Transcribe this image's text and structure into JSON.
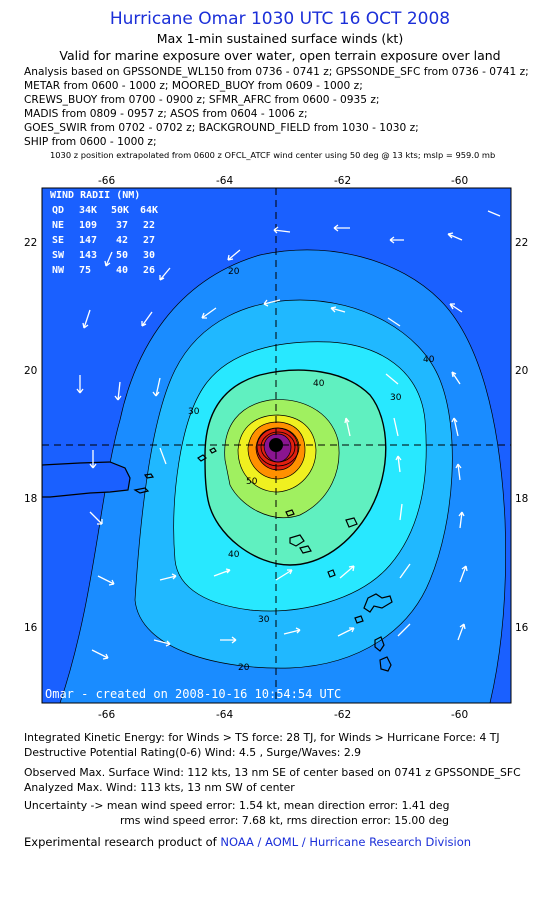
{
  "header": {
    "title": "Hurricane Omar 1030 UTC 16 OCT 2008",
    "subtitle": "Max 1-min sustained surface winds (kt)",
    "validity": "Valid for marine exposure over water, open terrain exposure over land"
  },
  "analysis_sources": [
    "Analysis based on  GPSSONDE_WL150 from 0736 - 0741 z;  GPSSONDE_SFC from 0736 - 0741 z;",
    "METAR from 0600 - 1000 z;  MOORED_BUOY from 0609 - 1000 z;",
    "CREWS_BUOY from 0700 - 0900 z;  SFMR_AFRC from 0600 - 0935 z;",
    "MADIS from 0809 - 0957 z;  ASOS from 0604 - 1006 z;",
    "GOES_SWIR from 0702 - 0702 z;  BACKGROUND_FIELD from 1030 - 1030 z;",
    "SHIP from 0600 - 1000 z;"
  ],
  "position_note": "1030 z position extrapolated from 0600 z OFCL_ATCF wind center using 50 deg @ 13 kts; mslp = 959.0 mb",
  "map": {
    "lon_ticks": [
      "-66",
      "-64",
      "-62",
      "-60"
    ],
    "lat_ticks": [
      "22",
      "20",
      "18",
      "16"
    ],
    "contour_labels": [
      "20",
      "30",
      "40",
      "50",
      "30",
      "40",
      "30",
      "20",
      "40"
    ],
    "credit": "Omar - created on 2008-10-16 10:54:54 UTC",
    "wind_radii": {
      "title": "WIND RADII (NM)",
      "header": [
        "QD",
        "34K",
        "50K",
        "64K"
      ],
      "rows": [
        [
          "NE",
          "109",
          "37",
          "22"
        ],
        [
          "SE",
          "147",
          "42",
          "27"
        ],
        [
          "SW",
          "143",
          "50",
          "30"
        ],
        [
          "NW",
          "75",
          "40",
          "26"
        ]
      ]
    },
    "colors": {
      "ocean_outer": "#1a60ff",
      "band_20": "#1a8cff",
      "band_30": "#20b8ff",
      "band_40": "#28e8ff",
      "band_50": "#60f0c0",
      "band_60": "#a0f060",
      "band_70": "#f0f020",
      "band_80": "#ff9000",
      "band_90": "#e02010",
      "core": "#8a1590",
      "land": "#1a60ff"
    }
  },
  "footer": {
    "ike": "Integrated Kinetic Energy:  for Winds > TS force: 28 TJ,  for Winds > Hurricane Force: 4 TJ",
    "dpr": "Destructive Potential Rating(0-6)   Wind: 4.5 , Surge/Waves: 2.9",
    "observed_max": "Observed Max. Surface Wind: 112 kts, 13 nm SE of center based on 0741 z GPSSONDE_SFC",
    "analyzed_max": "Analyzed Max. Wind: 113 kts, 13 nm SW of center",
    "uncertainty_1": "Uncertainty -> mean wind speed error: 1.54 kt,   mean direction error: 1.41 deg",
    "uncertainty_2": "rms wind speed error: 7.68 kt,   rms direction error: 15.00 deg",
    "credit_prefix": "Experimental research product of",
    "credit_link": "NOAA / AOML / Hurricane Research Division"
  }
}
